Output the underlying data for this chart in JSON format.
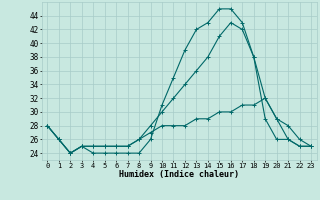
{
  "title": "",
  "xlabel": "Humidex (Indice chaleur)",
  "ylabel": "",
  "bg_color": "#c8e8e0",
  "grid_color": "#a8ccc8",
  "line_color": "#006868",
  "ylim": [
    23,
    46
  ],
  "xlim": [
    -0.5,
    23.5
  ],
  "yticks": [
    24,
    26,
    28,
    30,
    32,
    34,
    36,
    38,
    40,
    42,
    44
  ],
  "xticks": [
    0,
    1,
    2,
    3,
    4,
    5,
    6,
    7,
    8,
    9,
    10,
    11,
    12,
    13,
    14,
    15,
    16,
    17,
    18,
    19,
    20,
    21,
    22,
    23
  ],
  "series": [
    [
      28,
      26,
      24,
      25,
      24,
      24,
      24,
      24,
      24,
      26,
      31,
      35,
      39,
      42,
      43,
      45,
      45,
      43,
      38,
      29,
      26,
      26,
      25,
      25
    ],
    [
      28,
      26,
      24,
      25,
      25,
      25,
      25,
      25,
      26,
      28,
      30,
      32,
      34,
      36,
      38,
      41,
      43,
      42,
      38,
      32,
      29,
      28,
      26,
      25
    ],
    [
      28,
      26,
      24,
      25,
      25,
      25,
      25,
      25,
      26,
      27,
      28,
      28,
      28,
      29,
      29,
      30,
      30,
      31,
      31,
      32,
      29,
      26,
      25,
      25
    ]
  ]
}
